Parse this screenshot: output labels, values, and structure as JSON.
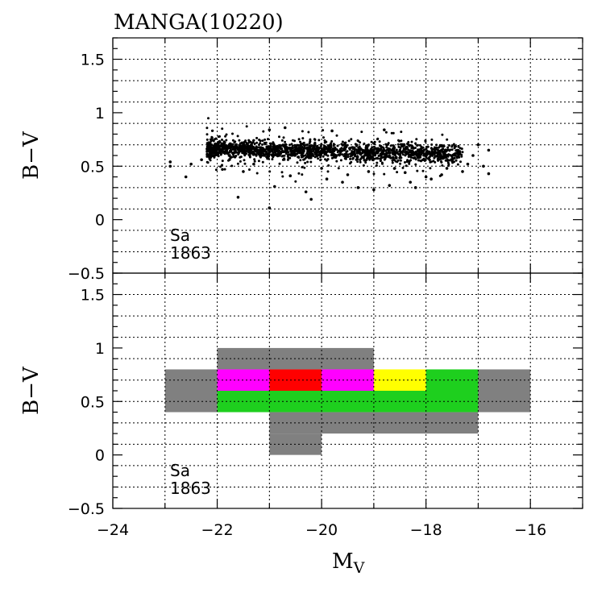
{
  "chart_data": {
    "title": "MANGA(10220)",
    "xlabel_main": "M",
    "xlabel_sub": "V",
    "x_range": [
      -24,
      -15
    ],
    "x_ticks": [
      -24,
      -22,
      -20,
      -18,
      -16
    ],
    "x_tick_labels": [
      "−24",
      "−22",
      "−20",
      "−18",
      "−16"
    ],
    "grid": true,
    "panels": [
      {
        "type": "scatter",
        "ylabel": "B−V",
        "y_range": [
          -0.5,
          1.7
        ],
        "y_ticks": [
          -0.5,
          0,
          0.5,
          1,
          1.5
        ],
        "y_tick_labels": [
          "−0.5",
          "0",
          "0.5",
          "1",
          "1.5"
        ],
        "annotation": [
          "Sa",
          "1863"
        ],
        "points": [
          [
            -22.9,
            0.5
          ],
          [
            -22.9,
            0.54
          ],
          [
            -22.6,
            0.4
          ],
          [
            -22.5,
            0.52
          ],
          [
            -22.3,
            0.56
          ],
          [
            -22.1,
            0.63
          ],
          [
            -21.9,
            0.47
          ],
          [
            -21.8,
            0.62
          ],
          [
            -21.6,
            0.21
          ],
          [
            -21.5,
            0.45
          ],
          [
            -21.3,
            0.52
          ],
          [
            -21.1,
            0.6
          ],
          [
            -21.0,
            0.11
          ],
          [
            -20.9,
            0.31
          ],
          [
            -20.6,
            0.41
          ],
          [
            -20.3,
            0.26
          ],
          [
            -20.2,
            0.19
          ],
          [
            -19.9,
            0.38
          ],
          [
            -19.6,
            0.35
          ],
          [
            -19.3,
            0.3
          ],
          [
            -19.1,
            0.45
          ],
          [
            -19.0,
            0.28
          ],
          [
            -18.8,
            0.84
          ],
          [
            -18.7,
            0.32
          ],
          [
            -18.6,
            0.48
          ],
          [
            -18.3,
            0.35
          ],
          [
            -18.2,
            0.3
          ],
          [
            -17.9,
            0.38
          ],
          [
            -17.7,
            0.42
          ],
          [
            -17.5,
            0.55
          ],
          [
            -17.3,
            0.45
          ],
          [
            -17.1,
            0.6
          ],
          [
            -17.0,
            0.7
          ],
          [
            -16.9,
            0.5
          ],
          [
            -16.8,
            0.43
          ],
          [
            -16.8,
            0.65
          ],
          [
            -17.2,
            0.52
          ],
          [
            -17.6,
            0.48
          ],
          [
            -18.0,
            0.4
          ],
          [
            -18.4,
            0.44
          ],
          [
            -19.5,
            0.42
          ],
          [
            -20.0,
            0.48
          ],
          [
            -20.7,
            0.86
          ],
          [
            -21.0,
            0.84
          ],
          [
            -19.8,
            0.83
          ]
        ],
        "cloud": {
          "count": 1800,
          "x_range": [
            -22.2,
            -17.3
          ],
          "y_center": 0.64,
          "y_spread": 0.09,
          "seed": 10220
        }
      },
      {
        "type": "heatmap",
        "ylabel": "B−V",
        "y_range": [
          -0.5,
          1.7
        ],
        "y_ticks": [
          -0.5,
          0,
          0.5,
          1,
          1.5
        ],
        "y_tick_labels": [
          "−0.5",
          "0",
          "0.5",
          "1",
          "1.5"
        ],
        "annotation": [
          "Sa",
          "1863"
        ],
        "cells": [
          {
            "x0": -22,
            "x1": -19,
            "y0": 0.8,
            "y1": 1.0,
            "color": "#808080"
          },
          {
            "x0": -23,
            "x1": -22,
            "y0": 0.4,
            "y1": 0.8,
            "color": "#808080"
          },
          {
            "x0": -17,
            "x1": -16,
            "y0": 0.4,
            "y1": 0.8,
            "color": "#808080"
          },
          {
            "x0": -22,
            "x1": -21,
            "y0": 0.6,
            "y1": 0.8,
            "color": "#ff00ff"
          },
          {
            "x0": -21,
            "x1": -20,
            "y0": 0.6,
            "y1": 0.8,
            "color": "#ff0000"
          },
          {
            "x0": -20,
            "x1": -19,
            "y0": 0.6,
            "y1": 0.8,
            "color": "#ff00ff"
          },
          {
            "x0": -19,
            "x1": -18,
            "y0": 0.6,
            "y1": 0.8,
            "color": "#ffff00"
          },
          {
            "x0": -18,
            "x1": -17,
            "y0": 0.6,
            "y1": 0.8,
            "color": "#1ecf1e"
          },
          {
            "x0": -22,
            "x1": -17,
            "y0": 0.4,
            "y1": 0.6,
            "color": "#1ecf1e"
          },
          {
            "x0": -21,
            "x1": -17,
            "y0": 0.2,
            "y1": 0.4,
            "color": "#808080"
          },
          {
            "x0": -21,
            "x1": -20,
            "y0": 0.0,
            "y1": 0.2,
            "color": "#808080"
          }
        ]
      }
    ]
  }
}
